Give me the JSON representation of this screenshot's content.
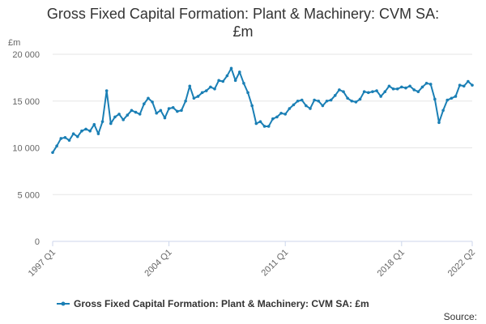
{
  "chart_data": {
    "type": "line",
    "title_line1": "Gross Fixed Capital Formation: Plant & Machinery: CVM SA:",
    "title_line2": "£m",
    "ylabel": "£m",
    "xlabel": "",
    "ylim": [
      0,
      20000
    ],
    "y_ticks": [
      {
        "value": 0,
        "label": "0"
      },
      {
        "value": 5000,
        "label": "5 000"
      },
      {
        "value": 10000,
        "label": "10 000"
      },
      {
        "value": 15000,
        "label": "15 000"
      },
      {
        "value": 20000,
        "label": "20 000"
      }
    ],
    "x_ticks": [
      {
        "index": 0,
        "label": "1997 Q1"
      },
      {
        "index": 28,
        "label": "2004 Q1"
      },
      {
        "index": 56,
        "label": "2011 Q1"
      },
      {
        "index": 84,
        "label": "2018 Q1"
      },
      {
        "index": 101,
        "label": "2022 Q2"
      }
    ],
    "series": [
      {
        "name": "Gross Fixed Capital Formation: Plant & Machinery: CVM SA: £m",
        "color": "#1a7fb5",
        "start": "1997 Q1",
        "end": "2022 Q2",
        "values": [
          9500,
          10200,
          11000,
          11100,
          10800,
          11500,
          11200,
          11800,
          12000,
          11800,
          12500,
          11500,
          12800,
          16100,
          12600,
          13300,
          13600,
          13000,
          13500,
          14000,
          13800,
          13600,
          14700,
          15300,
          14900,
          13700,
          14000,
          13200,
          14200,
          14300,
          13900,
          14000,
          15000,
          16600,
          15300,
          15500,
          15900,
          16100,
          16500,
          16300,
          17200,
          17100,
          17700,
          18500,
          17200,
          18100,
          16900,
          15900,
          14500,
          12600,
          12800,
          12300,
          12300,
          13100,
          13300,
          13700,
          13600,
          14200,
          14600,
          15000,
          15100,
          14500,
          14200,
          15100,
          15000,
          14500,
          15000,
          15100,
          15600,
          16200,
          16000,
          15300,
          15000,
          14900,
          15200,
          16000,
          15900,
          16000,
          16100,
          15500,
          16000,
          16600,
          16300,
          16300,
          16500,
          16400,
          16600,
          16200,
          16000,
          16500,
          16900,
          16800,
          15200,
          12700,
          14000,
          15100,
          15300,
          15500,
          16700,
          16600,
          17100,
          16700
        ]
      }
    ],
    "legend_position": "bottom",
    "grid": true
  },
  "source_label": "Source:"
}
